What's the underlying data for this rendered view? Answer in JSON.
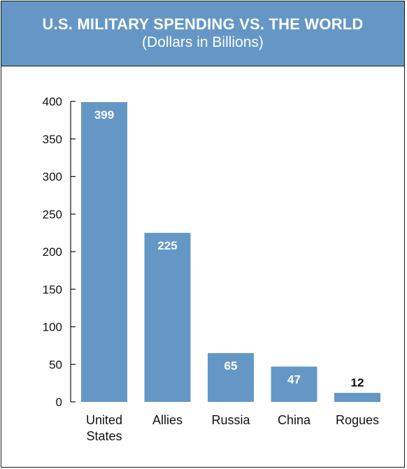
{
  "header": {
    "title": "U.S. MILITARY SPENDING VS. THE WORLD",
    "subtitle": "(Dollars in Billions)"
  },
  "colors": {
    "bar": "#6497c5",
    "header_bg": "#6497c5",
    "value_inside": "#ffffff",
    "value_outside": "#111111"
  },
  "chart_data": {
    "type": "bar",
    "title": "U.S. MILITARY SPENDING VS. THE WORLD",
    "subtitle": "(Dollars in Billions)",
    "categories": [
      [
        "United",
        "States"
      ],
      [
        "Allies"
      ],
      [
        "Russia"
      ],
      [
        "China"
      ],
      [
        "Rogues"
      ]
    ],
    "values": [
      399,
      225,
      65,
      47,
      12
    ],
    "value_labels": [
      "399",
      "225",
      "65",
      "47",
      "12"
    ],
    "value_label_outside": [
      false,
      false,
      false,
      false,
      true
    ],
    "yticks": [
      0,
      50,
      100,
      150,
      200,
      250,
      300,
      350,
      400
    ],
    "ylim": [
      0,
      400
    ],
    "xlabel": "",
    "ylabel": "",
    "grid": false,
    "legend": "none"
  }
}
